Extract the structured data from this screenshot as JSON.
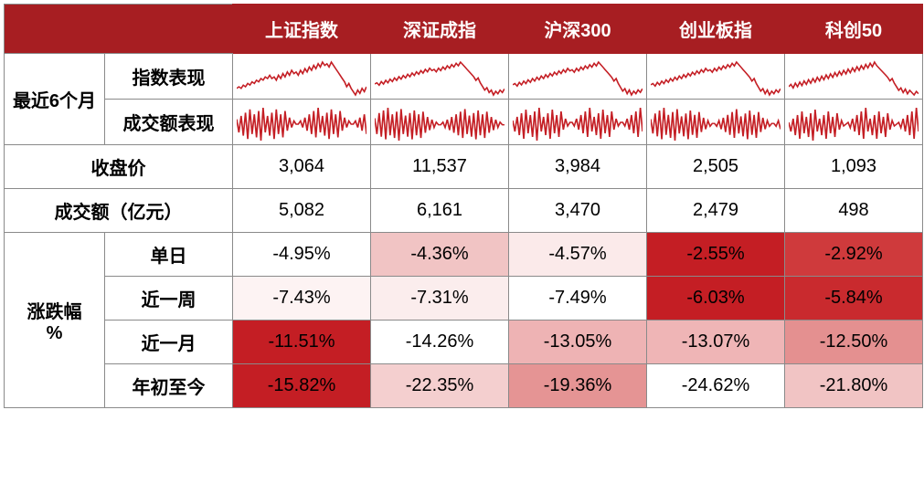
{
  "header": {
    "blank": "",
    "cols": [
      "上证指数",
      "深证成指",
      "沪深300",
      "创业板指",
      "科创50"
    ]
  },
  "row_group_6m": "最近6个月",
  "row_index_perf": "指数表现",
  "row_volume_perf": "成交额表现",
  "row_close": "收盘价",
  "row_turnover": "成交额（亿元）",
  "row_group_pct": "涨跌幅\n%",
  "pct_rows": [
    "单日",
    "近一周",
    "近一月",
    "年初至今"
  ],
  "close": [
    "3,064",
    "11,537",
    "3,984",
    "2,505",
    "1,093"
  ],
  "turnover": [
    "5,082",
    "6,161",
    "3,470",
    "2,479",
    "498"
  ],
  "pct": {
    "day": [
      {
        "v": "-4.95%",
        "bg": "#ffffff"
      },
      {
        "v": "-4.36%",
        "bg": "#f1c4c4"
      },
      {
        "v": "-4.57%",
        "bg": "#fbeaea"
      },
      {
        "v": "-2.55%",
        "bg": "#c41e24"
      },
      {
        "v": "-2.92%",
        "bg": "#cf3a3c"
      }
    ],
    "week": [
      {
        "v": "-7.43%",
        "bg": "#fdf3f3"
      },
      {
        "v": "-7.31%",
        "bg": "#fbeded"
      },
      {
        "v": "-7.49%",
        "bg": "#ffffff"
      },
      {
        "v": "-6.03%",
        "bg": "#c41e24"
      },
      {
        "v": "-5.84%",
        "bg": "#c92a2e"
      }
    ],
    "month": [
      {
        "v": "-11.51%",
        "bg": "#c41e24"
      },
      {
        "v": "-14.26%",
        "bg": "#ffffff"
      },
      {
        "v": "-13.05%",
        "bg": "#eeb3b4"
      },
      {
        "v": "-13.07%",
        "bg": "#efb5b6"
      },
      {
        "v": "-12.50%",
        "bg": "#e49090"
      }
    ],
    "ytd": [
      {
        "v": "-15.82%",
        "bg": "#c41e24"
      },
      {
        "v": "-22.35%",
        "bg": "#f4cfcf"
      },
      {
        "v": "-19.36%",
        "bg": "#e59494"
      },
      {
        "v": "-24.62%",
        "bg": "#ffffff"
      },
      {
        "v": "-21.80%",
        "bg": "#f1c4c4"
      }
    ]
  },
  "sparklines": {
    "stroke": "#c41e24",
    "index": [
      [
        14,
        15,
        14,
        16,
        15,
        17,
        16,
        18,
        17,
        19,
        18,
        20,
        19,
        21,
        20,
        22,
        20,
        21,
        19,
        22,
        20,
        23,
        21,
        24,
        22,
        25,
        23,
        24,
        22,
        25,
        23,
        26,
        24,
        27,
        25,
        28,
        26,
        29,
        27,
        30,
        28,
        29,
        27,
        30,
        28,
        26,
        24,
        22,
        20,
        18,
        15,
        17,
        14,
        12,
        10,
        13,
        11,
        14,
        12,
        15
      ],
      [
        20,
        21,
        19,
        22,
        20,
        23,
        21,
        24,
        22,
        25,
        23,
        26,
        24,
        27,
        25,
        28,
        26,
        29,
        27,
        30,
        28,
        31,
        29,
        32,
        30,
        33,
        31,
        32,
        30,
        33,
        31,
        34,
        32,
        35,
        33,
        36,
        34,
        37,
        35,
        38,
        36,
        34,
        32,
        30,
        28,
        26,
        23,
        25,
        21,
        18,
        15,
        17,
        13,
        15,
        11,
        14,
        12,
        15,
        13,
        16
      ],
      [
        18,
        19,
        17,
        20,
        18,
        21,
        19,
        22,
        20,
        23,
        21,
        24,
        22,
        25,
        23,
        26,
        24,
        27,
        25,
        28,
        26,
        29,
        27,
        30,
        28,
        31,
        29,
        30,
        28,
        31,
        29,
        32,
        30,
        33,
        31,
        34,
        32,
        35,
        33,
        36,
        34,
        32,
        30,
        28,
        26,
        24,
        21,
        23,
        19,
        16,
        13,
        15,
        11,
        14,
        10,
        13,
        11,
        14,
        12,
        15
      ],
      [
        22,
        23,
        21,
        24,
        22,
        25,
        23,
        26,
        24,
        27,
        25,
        28,
        26,
        29,
        27,
        30,
        28,
        31,
        29,
        32,
        30,
        33,
        31,
        34,
        32,
        35,
        33,
        34,
        32,
        35,
        33,
        36,
        34,
        37,
        35,
        38,
        36,
        39,
        37,
        40,
        38,
        36,
        34,
        32,
        30,
        28,
        25,
        27,
        23,
        20,
        17,
        19,
        15,
        18,
        14,
        17,
        15,
        18,
        16,
        19
      ],
      [
        16,
        18,
        15,
        19,
        16,
        20,
        17,
        21,
        18,
        22,
        19,
        23,
        20,
        24,
        21,
        25,
        22,
        26,
        23,
        27,
        24,
        28,
        25,
        29,
        26,
        30,
        27,
        31,
        28,
        32,
        29,
        33,
        30,
        34,
        31,
        35,
        32,
        36,
        33,
        37,
        34,
        32,
        30,
        28,
        26,
        24,
        21,
        23,
        19,
        16,
        13,
        15,
        11,
        14,
        10,
        13,
        11,
        9,
        12,
        10
      ]
    ],
    "volume": [
      [
        28,
        20,
        30,
        18,
        32,
        16,
        34,
        19,
        31,
        17,
        33,
        15,
        35,
        20,
        30,
        18,
        32,
        16,
        34,
        19,
        31,
        17,
        33,
        21,
        29,
        23,
        27,
        25,
        25,
        27,
        23,
        29,
        21,
        31,
        19,
        33,
        17,
        35,
        20,
        30,
        18,
        32,
        16,
        34,
        19,
        31,
        17,
        33,
        21,
        29,
        23,
        27,
        25,
        25,
        27,
        23,
        29,
        21,
        31,
        19
      ],
      [
        30,
        18,
        34,
        16,
        36,
        14,
        38,
        17,
        33,
        15,
        35,
        13,
        37,
        18,
        32,
        16,
        34,
        14,
        36,
        17,
        33,
        15,
        35,
        19,
        31,
        21,
        29,
        23,
        27,
        25,
        25,
        27,
        23,
        29,
        21,
        31,
        19,
        33,
        17,
        35,
        15,
        37,
        18,
        32,
        16,
        34,
        14,
        36,
        17,
        33,
        15,
        35,
        19,
        31,
        21,
        29,
        23,
        27,
        25,
        25
      ],
      [
        26,
        20,
        28,
        18,
        30,
        16,
        32,
        19,
        29,
        17,
        31,
        15,
        33,
        20,
        28,
        18,
        30,
        16,
        32,
        19,
        29,
        17,
        31,
        21,
        27,
        23,
        25,
        25,
        23,
        27,
        21,
        29,
        19,
        31,
        17,
        33,
        20,
        28,
        18,
        30,
        16,
        32,
        19,
        29,
        17,
        31,
        21,
        27,
        23,
        25,
        25,
        23,
        27,
        21,
        29,
        19,
        31,
        17,
        33,
        20
      ],
      [
        28,
        18,
        32,
        16,
        34,
        14,
        36,
        17,
        31,
        15,
        33,
        13,
        35,
        18,
        30,
        16,
        32,
        14,
        34,
        17,
        31,
        15,
        33,
        19,
        29,
        21,
        27,
        23,
        25,
        25,
        23,
        27,
        21,
        29,
        19,
        31,
        17,
        33,
        15,
        35,
        18,
        30,
        16,
        32,
        14,
        34,
        17,
        31,
        15,
        33,
        19,
        29,
        21,
        27,
        23,
        25,
        25,
        23,
        27,
        21
      ],
      [
        25,
        20,
        27,
        18,
        29,
        16,
        31,
        19,
        28,
        17,
        30,
        15,
        32,
        20,
        27,
        18,
        29,
        16,
        31,
        19,
        28,
        17,
        30,
        21,
        26,
        23,
        24,
        25,
        22,
        27,
        20,
        29,
        18,
        31,
        16,
        33,
        20,
        27,
        18,
        29,
        16,
        31,
        19,
        28,
        17,
        30,
        21,
        26,
        23,
        24,
        25,
        22,
        27,
        20,
        29,
        18,
        31,
        16,
        33,
        20
      ]
    ]
  },
  "colors": {
    "header_bg": "#a71e22",
    "grid": "#8a8a8a",
    "text": "#000000"
  },
  "col_widths": {
    "label1": 110,
    "label2": 140,
    "data": 151
  }
}
